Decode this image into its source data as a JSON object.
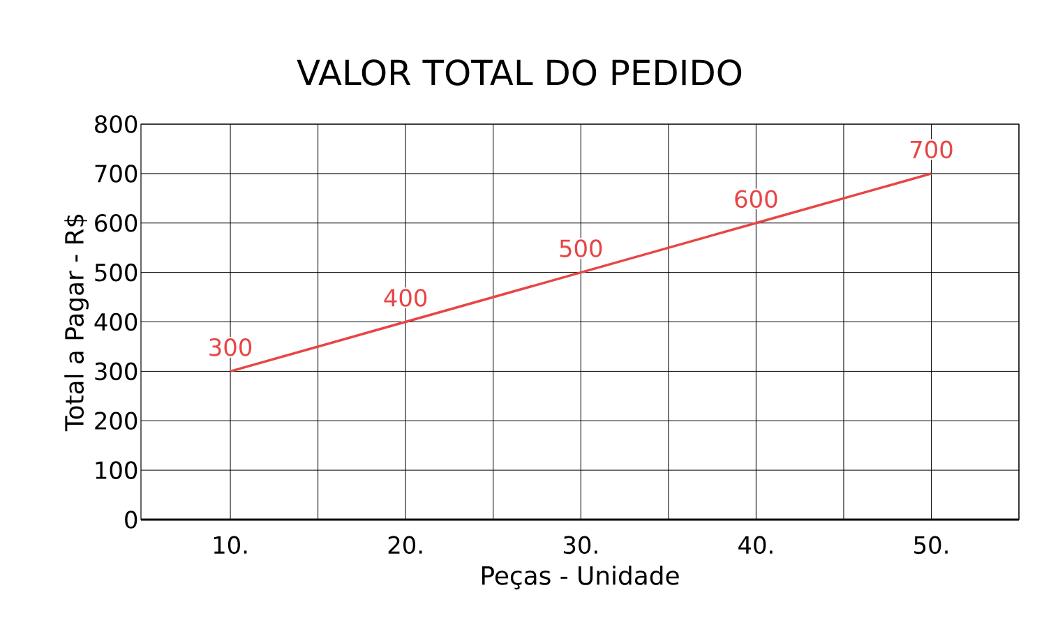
{
  "chart_data": {
    "type": "line",
    "title": "VALOR TOTAL DO PEDIDO",
    "xlabel": "Peças - Unidade",
    "ylabel": "Total a Pagar - R$",
    "x": [
      10,
      20,
      30,
      40,
      50
    ],
    "series": [
      {
        "color": "#e84545",
        "values": [
          300,
          400,
          500,
          600,
          700
        ]
      }
    ],
    "xlim": [
      4.9,
      55
    ],
    "xticks": [
      {
        "value": 10,
        "label": "10."
      },
      {
        "value": 15,
        "label": null
      },
      {
        "value": 20,
        "label": "20."
      },
      {
        "value": 25,
        "label": null
      },
      {
        "value": 30,
        "label": "30."
      },
      {
        "value": 35,
        "label": null
      },
      {
        "value": 40,
        "label": "40."
      },
      {
        "value": 45,
        "label": null
      },
      {
        "value": 50,
        "label": "50."
      },
      {
        "value": 55,
        "label": null
      }
    ],
    "ylim": [
      0,
      800
    ],
    "yticks": [
      0,
      100,
      200,
      300,
      400,
      500,
      600,
      700,
      800
    ],
    "grid": true,
    "data_labels": true,
    "marker": "none",
    "line_style": "solid"
  }
}
